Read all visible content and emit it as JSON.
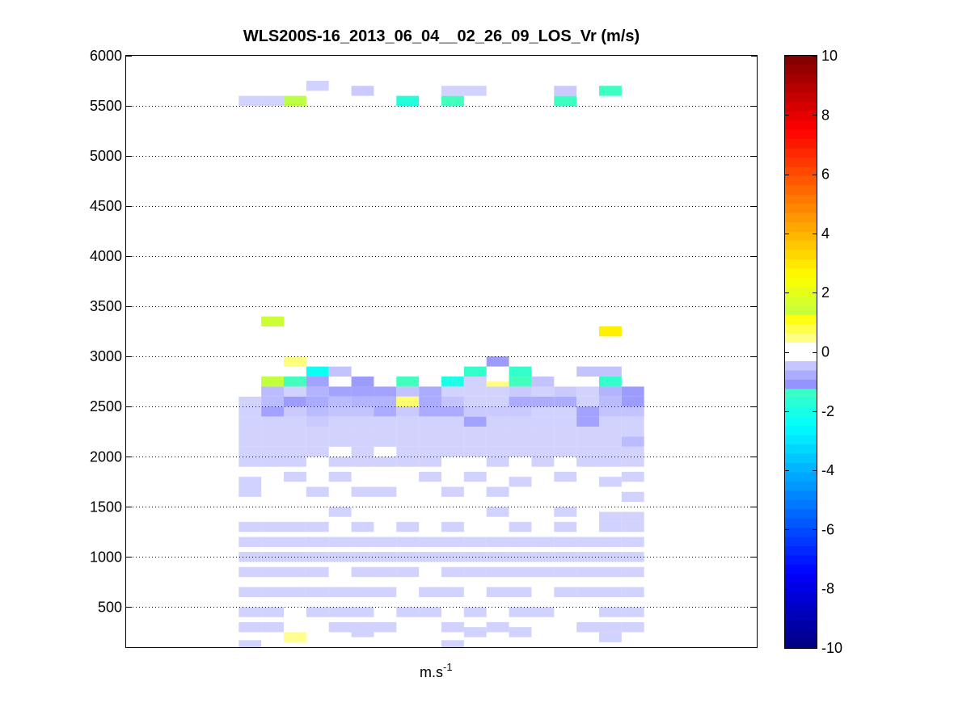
{
  "chart_data": {
    "type": "heatmap",
    "title": "WLS200S-16_2013_06_04__02_26_09_LOS_Vr (m/s)",
    "xlabel": "m.s",
    "xlabel_superscript": "-1",
    "ylabel": "",
    "ylim": [
      100,
      6000
    ],
    "y_ticks": [
      500,
      1000,
      1500,
      2000,
      2500,
      3000,
      3500,
      4000,
      4500,
      5000,
      5500,
      6000
    ],
    "grid": "horizontal dotted at y ticks",
    "colorbar": {
      "min": -10,
      "max": 10,
      "ticks": [
        10,
        8,
        6,
        4,
        2,
        0,
        -2,
        -4,
        -6,
        -8,
        -10
      ],
      "colormap": "jet-like, white at 0",
      "white_band": [
        -0.25,
        0.25
      ]
    },
    "x_columns": 18,
    "column_range": [
      5,
      22
    ],
    "bin_height_m": 100,
    "cells": [
      [
        5,
        5550,
        -0.3
      ],
      [
        6,
        5550,
        -0.3
      ],
      [
        7,
        5550,
        1.2
      ],
      [
        8,
        5700,
        -0.3
      ],
      [
        10,
        5650,
        -0.4
      ],
      [
        12,
        5550,
        -1.8
      ],
      [
        14,
        5550,
        -1.2
      ],
      [
        14,
        5650,
        -0.3
      ],
      [
        15,
        5650,
        -0.3
      ],
      [
        19,
        5550,
        -1.3
      ],
      [
        19,
        5650,
        -0.4
      ],
      [
        21,
        5650,
        -1.3
      ],
      [
        6,
        3350,
        1.5
      ],
      [
        21,
        3250,
        2.8
      ],
      [
        7,
        2950,
        0.5
      ],
      [
        8,
        2850,
        -2.3
      ],
      [
        9,
        2850,
        -0.5
      ],
      [
        15,
        2850,
        -1.5
      ],
      [
        16,
        2950,
        -1.0
      ],
      [
        17,
        2850,
        -1.5
      ],
      [
        20,
        2850,
        -0.5
      ],
      [
        21,
        2850,
        -0.5
      ],
      [
        6,
        2750,
        1.3
      ],
      [
        7,
        2750,
        -1.2
      ],
      [
        8,
        2750,
        -0.9
      ],
      [
        10,
        2750,
        -1.0
      ],
      [
        12,
        2750,
        -1.2
      ],
      [
        14,
        2750,
        -2.0
      ],
      [
        15,
        2750,
        -0.3
      ],
      [
        16,
        2700,
        0.5
      ],
      [
        17,
        2750,
        -1.2
      ],
      [
        18,
        2750,
        -0.5
      ],
      [
        21,
        2750,
        -1.5
      ],
      [
        6,
        2650,
        -0.6
      ],
      [
        7,
        2650,
        -0.3
      ],
      [
        8,
        2650,
        -0.7
      ],
      [
        9,
        2650,
        -0.9
      ],
      [
        10,
        2650,
        -0.9
      ],
      [
        11,
        2650,
        -0.9
      ],
      [
        12,
        2650,
        -0.5
      ],
      [
        13,
        2650,
        -0.8
      ],
      [
        14,
        2650,
        -0.3
      ],
      [
        15,
        2650,
        -0.3
      ],
      [
        16,
        2650,
        -0.3
      ],
      [
        17,
        2650,
        -0.4
      ],
      [
        18,
        2650,
        -0.3
      ],
      [
        19,
        2650,
        -0.4
      ],
      [
        20,
        2650,
        -0.3
      ],
      [
        21,
        2650,
        -0.7
      ],
      [
        22,
        2650,
        -1.0
      ],
      [
        5,
        2550,
        -0.3
      ],
      [
        6,
        2550,
        -0.6
      ],
      [
        7,
        2550,
        -1.0
      ],
      [
        8,
        2550,
        -0.8
      ],
      [
        9,
        2550,
        -0.6
      ],
      [
        10,
        2550,
        -0.7
      ],
      [
        11,
        2550,
        -0.7
      ],
      [
        12,
        2550,
        0.6
      ],
      [
        13,
        2550,
        -0.8
      ],
      [
        14,
        2550,
        -0.5
      ],
      [
        15,
        2550,
        -0.3
      ],
      [
        16,
        2550,
        -0.3
      ],
      [
        17,
        2550,
        -0.8
      ],
      [
        18,
        2550,
        -0.8
      ],
      [
        19,
        2550,
        -0.8
      ],
      [
        20,
        2550,
        -0.3
      ],
      [
        21,
        2550,
        -0.6
      ],
      [
        22,
        2550,
        -1.0
      ],
      [
        5,
        2450,
        -0.3
      ],
      [
        6,
        2450,
        -0.9
      ],
      [
        7,
        2450,
        -0.4
      ],
      [
        8,
        2450,
        -0.6
      ],
      [
        9,
        2450,
        -0.5
      ],
      [
        10,
        2450,
        -0.5
      ],
      [
        11,
        2450,
        -0.8
      ],
      [
        12,
        2450,
        -0.4
      ],
      [
        13,
        2450,
        -0.8
      ],
      [
        14,
        2450,
        -0.8
      ],
      [
        15,
        2450,
        -0.4
      ],
      [
        16,
        2450,
        -0.4
      ],
      [
        17,
        2450,
        -0.4
      ],
      [
        18,
        2450,
        -0.3
      ],
      [
        19,
        2450,
        -0.3
      ],
      [
        20,
        2450,
        -0.9
      ],
      [
        21,
        2450,
        -0.5
      ],
      [
        22,
        2450,
        -0.5
      ],
      [
        5,
        2350,
        -0.3
      ],
      [
        6,
        2350,
        -0.3
      ],
      [
        7,
        2350,
        -0.3
      ],
      [
        8,
        2350,
        -0.4
      ],
      [
        9,
        2350,
        -0.3
      ],
      [
        10,
        2350,
        -0.3
      ],
      [
        11,
        2350,
        -0.3
      ],
      [
        12,
        2350,
        -0.3
      ],
      [
        13,
        2350,
        -0.3
      ],
      [
        14,
        2350,
        -0.3
      ],
      [
        15,
        2350,
        -0.9
      ],
      [
        16,
        2350,
        -0.3
      ],
      [
        17,
        2350,
        -0.3
      ],
      [
        18,
        2350,
        -0.3
      ],
      [
        19,
        2350,
        -0.3
      ],
      [
        20,
        2350,
        -0.9
      ],
      [
        21,
        2350,
        -0.3
      ],
      [
        22,
        2350,
        -0.3
      ],
      [
        5,
        2250,
        -0.3
      ],
      [
        6,
        2250,
        -0.3
      ],
      [
        7,
        2250,
        -0.3
      ],
      [
        8,
        2250,
        -0.3
      ],
      [
        9,
        2250,
        -0.3
      ],
      [
        10,
        2250,
        -0.3
      ],
      [
        11,
        2250,
        -0.3
      ],
      [
        12,
        2250,
        -0.3
      ],
      [
        13,
        2250,
        -0.3
      ],
      [
        14,
        2250,
        -0.3
      ],
      [
        15,
        2250,
        -0.3
      ],
      [
        16,
        2250,
        -0.3
      ],
      [
        17,
        2250,
        -0.3
      ],
      [
        18,
        2250,
        -0.3
      ],
      [
        19,
        2250,
        -0.3
      ],
      [
        20,
        2250,
        -0.3
      ],
      [
        21,
        2250,
        -0.3
      ],
      [
        22,
        2250,
        -0.3
      ],
      [
        5,
        2150,
        -0.3
      ],
      [
        6,
        2150,
        -0.3
      ],
      [
        7,
        2150,
        -0.3
      ],
      [
        8,
        2150,
        -0.3
      ],
      [
        9,
        2150,
        -0.3
      ],
      [
        10,
        2150,
        -0.3
      ],
      [
        11,
        2150,
        -0.3
      ],
      [
        12,
        2150,
        -0.3
      ],
      [
        13,
        2150,
        -0.3
      ],
      [
        14,
        2150,
        -0.3
      ],
      [
        15,
        2150,
        -0.3
      ],
      [
        16,
        2150,
        -0.3
      ],
      [
        17,
        2150,
        -0.3
      ],
      [
        18,
        2150,
        -0.3
      ],
      [
        19,
        2150,
        -0.3
      ],
      [
        20,
        2150,
        -0.3
      ],
      [
        21,
        2150,
        -0.3
      ],
      [
        22,
        2150,
        -0.6
      ],
      [
        5,
        2050,
        -0.3
      ],
      [
        6,
        2050,
        -0.3
      ],
      [
        7,
        2050,
        -0.3
      ],
      [
        8,
        2050,
        -0.3
      ],
      [
        10,
        2050,
        -0.3
      ],
      [
        12,
        2050,
        -0.3
      ],
      [
        13,
        2050,
        -0.3
      ],
      [
        14,
        2050,
        -0.3
      ],
      [
        15,
        2050,
        -0.3
      ],
      [
        16,
        2050,
        -0.3
      ],
      [
        17,
        2050,
        -0.3
      ],
      [
        18,
        2050,
        -0.3
      ],
      [
        19,
        2050,
        -0.3
      ],
      [
        20,
        2050,
        -0.3
      ],
      [
        21,
        2050,
        -0.3
      ],
      [
        22,
        2050,
        -0.3
      ],
      [
        5,
        1950,
        -0.3
      ],
      [
        6,
        1950,
        -0.3
      ],
      [
        7,
        1950,
        -0.3
      ],
      [
        9,
        1950,
        -0.3
      ],
      [
        10,
        1950,
        -0.3
      ],
      [
        11,
        1950,
        -0.3
      ],
      [
        12,
        1950,
        -0.3
      ],
      [
        13,
        1950,
        -0.3
      ],
      [
        16,
        1950,
        -0.3
      ],
      [
        18,
        1950,
        -0.3
      ],
      [
        20,
        1950,
        -0.3
      ],
      [
        21,
        1950,
        -0.3
      ],
      [
        22,
        1950,
        -0.3
      ],
      [
        5,
        1750,
        -0.3
      ],
      [
        7,
        1800,
        -0.3
      ],
      [
        9,
        1800,
        -0.3
      ],
      [
        13,
        1800,
        -0.3
      ],
      [
        15,
        1800,
        -0.3
      ],
      [
        17,
        1750,
        -0.3
      ],
      [
        19,
        1800,
        -0.3
      ],
      [
        21,
        1750,
        -0.3
      ],
      [
        22,
        1800,
        -0.3
      ],
      [
        5,
        1650,
        -0.3
      ],
      [
        8,
        1650,
        -0.3
      ],
      [
        10,
        1650,
        -0.3
      ],
      [
        11,
        1650,
        -0.3
      ],
      [
        14,
        1650,
        -0.3
      ],
      [
        16,
        1650,
        -0.3
      ],
      [
        22,
        1600,
        -0.3
      ],
      [
        9,
        1450,
        -0.3
      ],
      [
        16,
        1450,
        -0.3
      ],
      [
        19,
        1450,
        -0.3
      ],
      [
        21,
        1400,
        -0.3
      ],
      [
        22,
        1400,
        -0.3
      ],
      [
        5,
        1300,
        -0.3
      ],
      [
        6,
        1300,
        -0.3
      ],
      [
        7,
        1300,
        -0.3
      ],
      [
        8,
        1300,
        -0.3
      ],
      [
        10,
        1300,
        -0.3
      ],
      [
        12,
        1300,
        -0.3
      ],
      [
        14,
        1300,
        -0.3
      ],
      [
        17,
        1300,
        -0.3
      ],
      [
        19,
        1300,
        -0.3
      ],
      [
        21,
        1300,
        -0.3
      ],
      [
        22,
        1300,
        -0.3
      ],
      [
        5,
        1150,
        -0.3
      ],
      [
        6,
        1150,
        -0.3
      ],
      [
        7,
        1150,
        -0.3
      ],
      [
        8,
        1150,
        -0.3
      ],
      [
        9,
        1150,
        -0.3
      ],
      [
        10,
        1150,
        -0.3
      ],
      [
        11,
        1150,
        -0.3
      ],
      [
        12,
        1150,
        -0.3
      ],
      [
        13,
        1150,
        -0.3
      ],
      [
        14,
        1150,
        -0.3
      ],
      [
        15,
        1150,
        -0.3
      ],
      [
        16,
        1150,
        -0.3
      ],
      [
        17,
        1150,
        -0.3
      ],
      [
        18,
        1150,
        -0.3
      ],
      [
        19,
        1150,
        -0.3
      ],
      [
        20,
        1150,
        -0.3
      ],
      [
        21,
        1150,
        -0.3
      ],
      [
        22,
        1150,
        -0.3
      ],
      [
        5,
        1000,
        -0.3
      ],
      [
        6,
        1000,
        -0.3
      ],
      [
        7,
        1000,
        -0.3
      ],
      [
        8,
        1000,
        -0.3
      ],
      [
        9,
        1000,
        -0.3
      ],
      [
        10,
        1000,
        -0.3
      ],
      [
        11,
        1000,
        -0.3
      ],
      [
        12,
        1000,
        -0.3
      ],
      [
        13,
        1000,
        -0.3
      ],
      [
        14,
        1000,
        -0.3
      ],
      [
        15,
        1000,
        -0.3
      ],
      [
        16,
        1000,
        -0.3
      ],
      [
        17,
        1000,
        -0.3
      ],
      [
        18,
        1000,
        -0.3
      ],
      [
        19,
        1000,
        -0.3
      ],
      [
        20,
        1000,
        -0.3
      ],
      [
        21,
        1000,
        -0.3
      ],
      [
        22,
        1000,
        -0.3
      ],
      [
        5,
        850,
        -0.3
      ],
      [
        6,
        850,
        -0.3
      ],
      [
        7,
        850,
        -0.3
      ],
      [
        8,
        850,
        -0.3
      ],
      [
        10,
        850,
        -0.3
      ],
      [
        11,
        850,
        -0.3
      ],
      [
        12,
        850,
        -0.3
      ],
      [
        14,
        850,
        -0.3
      ],
      [
        15,
        850,
        -0.3
      ],
      [
        16,
        850,
        -0.3
      ],
      [
        17,
        850,
        -0.3
      ],
      [
        18,
        850,
        -0.3
      ],
      [
        19,
        850,
        -0.3
      ],
      [
        20,
        850,
        -0.3
      ],
      [
        21,
        850,
        -0.3
      ],
      [
        22,
        850,
        -0.3
      ],
      [
        5,
        650,
        -0.3
      ],
      [
        6,
        650,
        -0.3
      ],
      [
        7,
        650,
        -0.3
      ],
      [
        8,
        650,
        -0.3
      ],
      [
        9,
        650,
        -0.3
      ],
      [
        10,
        650,
        -0.3
      ],
      [
        11,
        650,
        -0.3
      ],
      [
        13,
        650,
        -0.3
      ],
      [
        14,
        650,
        -0.3
      ],
      [
        16,
        650,
        -0.3
      ],
      [
        17,
        650,
        -0.3
      ],
      [
        19,
        650,
        -0.3
      ],
      [
        20,
        650,
        -0.3
      ],
      [
        21,
        650,
        -0.3
      ],
      [
        22,
        650,
        -0.3
      ],
      [
        5,
        450,
        -0.3
      ],
      [
        6,
        450,
        -0.3
      ],
      [
        8,
        450,
        -0.3
      ],
      [
        9,
        450,
        -0.3
      ],
      [
        10,
        450,
        -0.3
      ],
      [
        12,
        450,
        -0.3
      ],
      [
        13,
        450,
        -0.3
      ],
      [
        15,
        450,
        -0.3
      ],
      [
        17,
        450,
        -0.3
      ],
      [
        18,
        450,
        -0.3
      ],
      [
        21,
        450,
        -0.3
      ],
      [
        22,
        450,
        -0.3
      ],
      [
        5,
        300,
        -0.3
      ],
      [
        6,
        300,
        -0.3
      ],
      [
        9,
        300,
        -0.3
      ],
      [
        10,
        300,
        -0.3
      ],
      [
        11,
        300,
        -0.3
      ],
      [
        14,
        300,
        -0.3
      ],
      [
        16,
        300,
        -0.3
      ],
      [
        20,
        300,
        -0.3
      ],
      [
        21,
        300,
        -0.3
      ],
      [
        22,
        300,
        -0.3
      ],
      [
        7,
        200,
        0.4
      ],
      [
        10,
        250,
        -0.3
      ],
      [
        15,
        250,
        -0.3
      ],
      [
        17,
        250,
        -0.3
      ],
      [
        21,
        200,
        -0.3
      ],
      [
        5,
        120,
        -0.3
      ],
      [
        14,
        120,
        -0.3
      ]
    ]
  }
}
